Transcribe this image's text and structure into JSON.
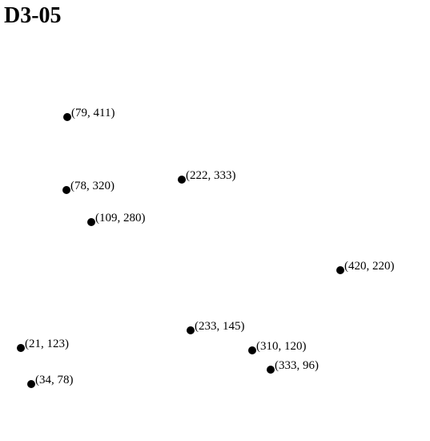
{
  "page": {
    "title": "D3-05"
  },
  "chart_data": {
    "type": "scatter",
    "title": "D3-05",
    "xlabel": "",
    "ylabel": "",
    "grid": false,
    "x": [
      79,
      222,
      78,
      109,
      420,
      233,
      21,
      310,
      333,
      34
    ],
    "y": [
      411,
      333,
      320,
      280,
      220,
      145,
      123,
      120,
      96,
      78
    ],
    "labels": [
      "(79, 411)",
      "(222, 333)",
      "(78, 320)",
      "(109, 280)",
      "(420, 220)",
      "(233, 145)",
      "(21, 123)",
      "(310, 120)",
      "(333, 96)",
      "(34, 78)"
    ]
  }
}
